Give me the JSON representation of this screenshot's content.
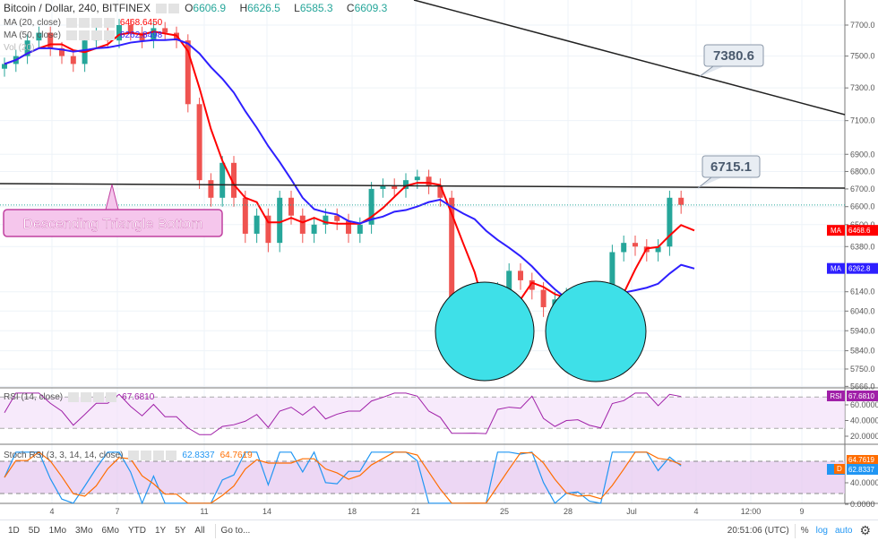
{
  "header": {
    "symbol": "Bitcoin / Dollar, 240, BITFINEX",
    "ohlc": {
      "o_label": "O",
      "o": "6606.9",
      "h_label": "H",
      "h": "6626.5",
      "l_label": "L",
      "l": "6585.3",
      "c_label": "C",
      "c": "6609.3"
    }
  },
  "indicators": {
    "ma20": {
      "label": "MA (20, close)",
      "value": "6468.6450",
      "tag": "MA",
      "axis_value": "6468.6",
      "color": "#ff0000"
    },
    "ma50": {
      "label": "MA (50, close)",
      "value": "6262.8498",
      "tag": "MA",
      "axis_value": "6262.8",
      "color": "#2e1fff"
    },
    "vol": {
      "label": "Vol (20)"
    },
    "rsi": {
      "label": "RSI (14, close)",
      "value": "67.6810",
      "tag": "RSI",
      "color": "#a020a8"
    },
    "stoch": {
      "label": "Stoch RSI (3, 3, 14, 14, close)",
      "k": "62.8337",
      "d": "64.7619",
      "tag": "D",
      "k_color": "#2196f3",
      "d_color": "#ff6d00"
    }
  },
  "chart_data": {
    "type": "candlestick",
    "price_scale": "log",
    "price_ticks": [
      7700,
      7500,
      7300,
      7100,
      6900,
      6800,
      6700,
      6600,
      6500,
      6380,
      6140,
      6040,
      5940,
      5840,
      5750,
      5666
    ],
    "rsi_ticks": [
      "60.0000",
      "40.0000",
      "20.0000"
    ],
    "stoch_ticks": [
      "40.0000",
      "0.0000"
    ],
    "time_ticks": [
      "4",
      "7",
      "11",
      "14",
      "18",
      "21",
      "25",
      "28",
      "Jul",
      "4",
      "12:00",
      "9"
    ],
    "closes": [
      7450,
      7500,
      7600,
      7650,
      7550,
      7500,
      7450,
      7600,
      7650,
      7600,
      7700,
      7650,
      7600,
      7680,
      7650,
      7600,
      7200,
      6750,
      6650,
      6850,
      6650,
      6450,
      6550,
      6400,
      6650,
      6550,
      6450,
      6500,
      6550,
      6520,
      6450,
      6500,
      6700,
      6720,
      6700,
      6750,
      6770,
      6720,
      6650,
      6100,
      6120,
      6100,
      5800,
      6150,
      6250,
      6200,
      6150,
      6060,
      6100,
      6120,
      6080,
      5880,
      5900,
      6350,
      6400,
      6380,
      6350,
      6380,
      6650,
      6610
    ],
    "last_price": 6609.3,
    "up_color": "#26a69a",
    "down_color": "#ef5350"
  },
  "annotations": {
    "trend_label": "7380.6",
    "horizontal_label": "6715.1",
    "pattern_label": "Descending Triangle Bottom",
    "circle_color": "#3ee0e8"
  },
  "bottom": {
    "ranges": [
      "1D",
      "5D",
      "1Mo",
      "3Mo",
      "6Mo",
      "YTD",
      "1Y",
      "5Y",
      "All"
    ],
    "goto": "Go to...",
    "clock": "20:51:06 (UTC)",
    "percent": "%",
    "log": "log",
    "auto": "auto"
  }
}
